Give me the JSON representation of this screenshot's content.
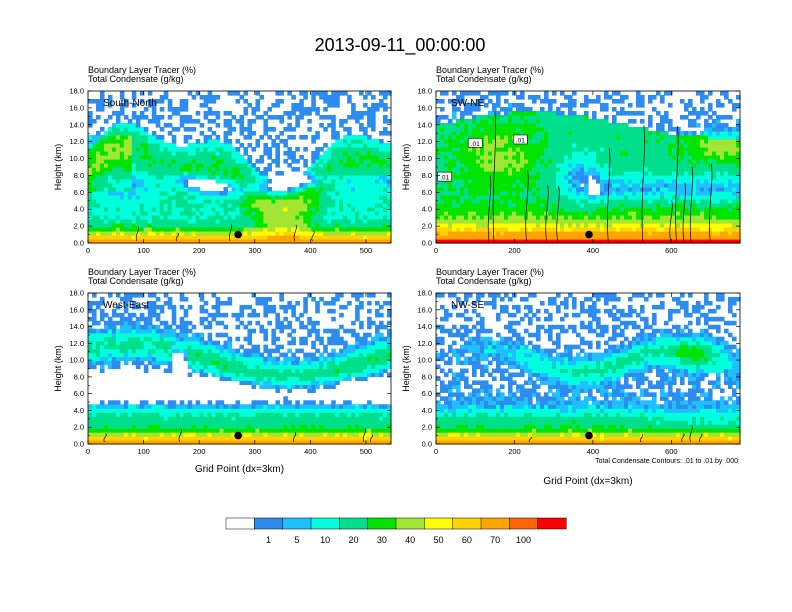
{
  "chart_data": {
    "type": "heatmap",
    "title": "2013-09-11_00:00:00",
    "panels": [
      {
        "name": "South-North",
        "subtitle1": "Boundary Layer Tracer   (%)",
        "subtitle2": "Total Condensate   (g/kg)",
        "label": "South-North",
        "ylabel": "Height (km)",
        "xlabel": "",
        "xlim": [
          0,
          545
        ],
        "ylim": [
          0,
          18
        ],
        "xticks": [
          "0",
          "100",
          "200",
          "300",
          "400",
          "500"
        ],
        "xtick_values": [
          0,
          100,
          200,
          300,
          400,
          500
        ],
        "yticks": [
          "0.0",
          "2.0",
          "4.0",
          "6.0",
          "8.0",
          "10.0",
          "12.0",
          "14.0",
          "16.0",
          "18.0"
        ],
        "marker": {
          "x": 270,
          "y": 1.0
        },
        "shape": "sn",
        "seed": 11,
        "contour_labels": [],
        "footnote": ""
      },
      {
        "name": "SW-NE",
        "subtitle1": "Boundary Layer Tracer   (%)",
        "subtitle2": "Total Condensate   (g/kg)",
        "label": "SW-NE",
        "ylabel": "Height (km)",
        "xlabel": "",
        "xlim": [
          0,
          775
        ],
        "ylim": [
          0,
          18
        ],
        "xticks": [
          "0",
          "200",
          "400",
          "600"
        ],
        "xtick_values": [
          0,
          200,
          400,
          600
        ],
        "yticks": [
          "0.0",
          "2.0",
          "4.0",
          "6.0",
          "8.0",
          "10.0",
          "12.0",
          "14.0",
          "16.0",
          "18.0"
        ],
        "marker": {
          "x": 390,
          "y": 1.0
        },
        "shape": "swne",
        "seed": 23,
        "contour_labels": [
          {
            "text": ".01",
            "x": 100,
            "y": 11.8
          },
          {
            "text": ".01",
            "x": 215,
            "y": 12.2
          },
          {
            "text": ".01",
            "x": 22,
            "y": 7.8
          }
        ],
        "footnote": ""
      },
      {
        "name": "West-East",
        "subtitle1": "Boundary Layer Tracer   (%)",
        "subtitle2": "Total Condensate   (g/kg)",
        "label": "West-East",
        "ylabel": "Height (km)",
        "xlabel": "Grid Point (dx=3km)",
        "xlim": [
          0,
          545
        ],
        "ylim": [
          0,
          18
        ],
        "xticks": [
          "0",
          "100",
          "200",
          "300",
          "400",
          "500"
        ],
        "xtick_values": [
          0,
          100,
          200,
          300,
          400,
          500
        ],
        "yticks": [
          "0.0",
          "2.0",
          "4.0",
          "6.0",
          "8.0",
          "10.0",
          "12.0",
          "14.0",
          "16.0",
          "18.0"
        ],
        "marker": {
          "x": 270,
          "y": 1.0
        },
        "shape": "we",
        "seed": 37,
        "contour_labels": [],
        "footnote": ""
      },
      {
        "name": "NW-SE",
        "subtitle1": "Boundary Layer Tracer   (%)",
        "subtitle2": "Total Condensate   (g/kg)",
        "label": "NW-SE",
        "ylabel": "Height (km)",
        "xlabel": "Grid Point (dx=3km)",
        "xlim": [
          0,
          775
        ],
        "ylim": [
          0,
          18
        ],
        "xticks": [
          "0",
          "200",
          "400",
          "600"
        ],
        "xtick_values": [
          0,
          200,
          400,
          600
        ],
        "yticks": [
          "0.0",
          "2.0",
          "4.0",
          "6.0",
          "8.0",
          "10.0",
          "12.0",
          "14.0",
          "16.0",
          "18.0"
        ],
        "marker": {
          "x": 390,
          "y": 1.0
        },
        "shape": "nwse",
        "seed": 53,
        "contour_labels": [],
        "footnote": "Total Condensate Contours: .01 to .01 by .000"
      }
    ],
    "colorbar": {
      "levels": [
        "1",
        "5",
        "10",
        "20",
        "30",
        "40",
        "50",
        "60",
        "70",
        "100"
      ],
      "colors": [
        "#ffffff",
        "#2d8cf0",
        "#1ec0ff",
        "#00ffdc",
        "#00e08c",
        "#00e400",
        "#a0e632",
        "#ffff00",
        "#ffd200",
        "#ffa500",
        "#ff6400",
        "#ff0000"
      ]
    }
  }
}
